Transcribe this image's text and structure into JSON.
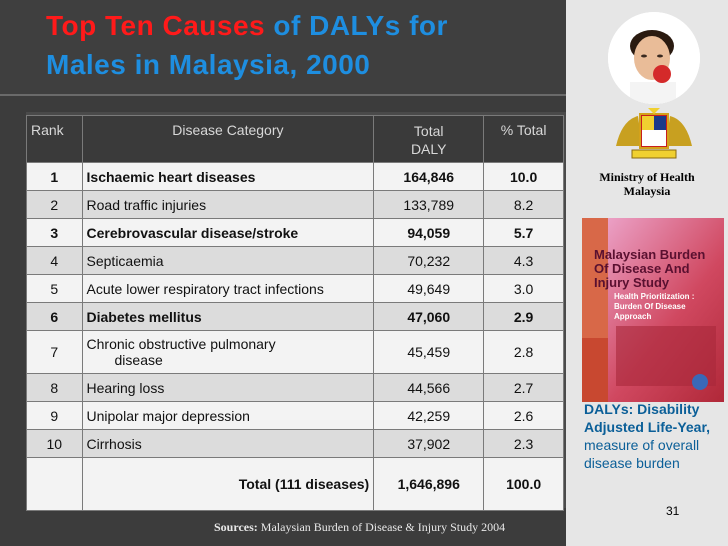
{
  "title": {
    "part1": "Top Ten Causes",
    "part2": " of DALYs for",
    "part3": "Males in Malaysia, 2000"
  },
  "table": {
    "headers": {
      "rank": "Rank",
      "category": "Disease Category",
      "total": "Total DALY",
      "pct": "% Total"
    },
    "rows": [
      {
        "rank": "1",
        "category": "Ischaemic heart diseases",
        "total": "164,846",
        "pct": "10.0"
      },
      {
        "rank": "2",
        "category": "Road traffic injuries",
        "total": "133,789",
        "pct": "8.2"
      },
      {
        "rank": "3",
        "category": "Cerebrovascular disease/stroke",
        "total": "94,059",
        "pct": "5.7"
      },
      {
        "rank": "4",
        "category": "Septicaemia",
        "total": "70,232",
        "pct": "4.3"
      },
      {
        "rank": "5",
        "category": "Acute lower respiratory tract infections",
        "total": "49,649",
        "pct": "3.0"
      },
      {
        "rank": "6",
        "category": "Diabetes mellitus",
        "total": "47,060",
        "pct": "2.9"
      },
      {
        "rank": "7",
        "category": "Chronic obstructive pulmonary",
        "category2": "disease",
        "total": "45,459",
        "pct": "2.8"
      },
      {
        "rank": "8",
        "category": "Hearing loss",
        "total": "44,566",
        "pct": "2.7"
      },
      {
        "rank": "9",
        "category": "Unipolar major depression",
        "total": "42,259",
        "pct": "2.6"
      },
      {
        "rank": "10",
        "category": "Cirrhosis",
        "total": "37,902",
        "pct": "2.3"
      }
    ],
    "total_row": {
      "label": "Total (111 diseases)",
      "total": "1,646,896",
      "pct": "100.0"
    }
  },
  "sources": {
    "label": "Sources:",
    "text": " Malaysian Burden of Disease & Injury Study 2004"
  },
  "ministry": {
    "line1": "Ministry of Health",
    "line2": "Malaysia"
  },
  "book": {
    "title": "Malaysian Burden Of Disease And Injury Study",
    "subtitle": "Health Prioritization : Burden Of Disease Approach"
  },
  "caption": {
    "bold": "DALYs: Disability Adjusted Life-Year,",
    "rest": " measure of overall disease burden"
  },
  "page_number": "31"
}
